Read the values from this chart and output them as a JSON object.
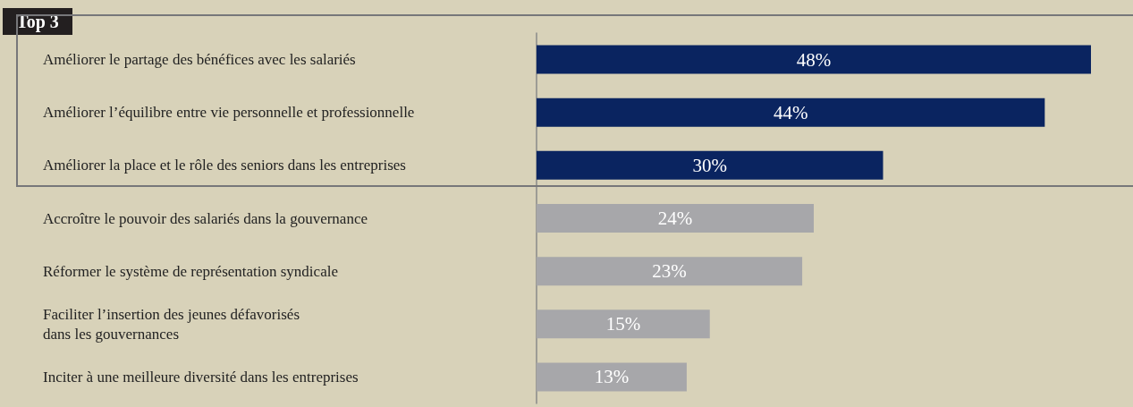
{
  "chart_data": {
    "type": "bar",
    "orientation": "horizontal",
    "annotations": [
      "Top 3"
    ],
    "categories": [
      "Améliorer le partage des bénéfices avec les salariés",
      "Améliorer l’équilibre entre vie personnelle et professionnelle",
      "Améliorer la place et le rôle des seniors dans les entreprises",
      "Accroître le pouvoir des salariés dans la gouvernance",
      "Réformer le système de représentation syndicale",
      "Faciliter l’insertion des jeunes défavorisés\ndans les gouvernances",
      "Inciter à une meilleure diversité dans les entreprises"
    ],
    "values": [
      48,
      44,
      30,
      24,
      23,
      15,
      13
    ],
    "value_labels": [
      "48%",
      "44%",
      "30%",
      "24%",
      "23%",
      "15%",
      "13%"
    ],
    "colors": [
      "#0a2460",
      "#0a2460",
      "#0a2460",
      "#a7a7aa",
      "#a7a7aa",
      "#a7a7aa",
      "#a7a7aa"
    ]
  }
}
